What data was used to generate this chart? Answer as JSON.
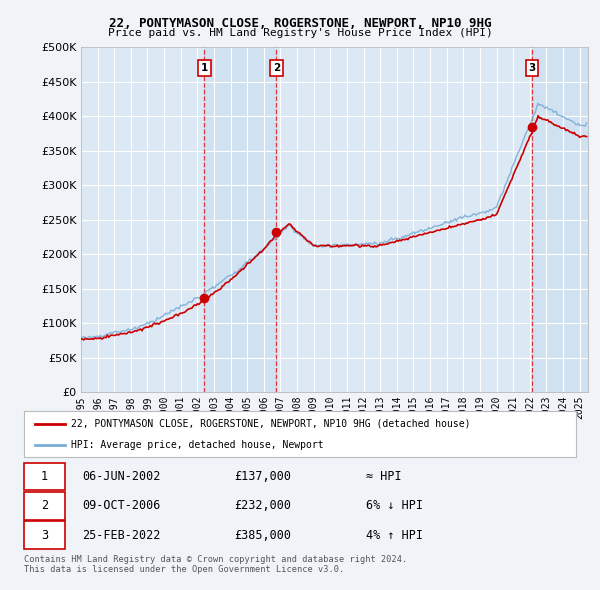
{
  "title": "22, PONTYMASON CLOSE, ROGERSTONE, NEWPORT, NP10 9HG",
  "subtitle": "Price paid vs. HM Land Registry's House Price Index (HPI)",
  "ylim": [
    0,
    500000
  ],
  "yticks": [
    0,
    50000,
    100000,
    150000,
    200000,
    250000,
    300000,
    350000,
    400000,
    450000,
    500000
  ],
  "background_color": "#f0f4f8",
  "plot_background": "#dce9f5",
  "red_color": "#cc0000",
  "blue_color": "#7aadd4",
  "trans_years": [
    2002.42,
    2006.75,
    2022.13
  ],
  "trans_prices": [
    137000,
    232000,
    385000
  ],
  "trans_labels": [
    "1",
    "2",
    "3"
  ],
  "transaction_table": [
    {
      "num": "1",
      "date": "06-JUN-2002",
      "price": "£137,000",
      "note": "≈ HPI"
    },
    {
      "num": "2",
      "date": "09-OCT-2006",
      "price": "£232,000",
      "note": "6% ↓ HPI"
    },
    {
      "num": "3",
      "date": "25-FEB-2022",
      "price": "£385,000",
      "note": "4% ↑ HPI"
    }
  ],
  "legend_entries": [
    "22, PONTYMASON CLOSE, ROGERSTONE, NEWPORT, NP10 9HG (detached house)",
    "HPI: Average price, detached house, Newport"
  ],
  "footnote": "Contains HM Land Registry data © Crown copyright and database right 2024.\nThis data is licensed under the Open Government Licence v3.0.",
  "xstart": 1995.0,
  "xend": 2025.5
}
